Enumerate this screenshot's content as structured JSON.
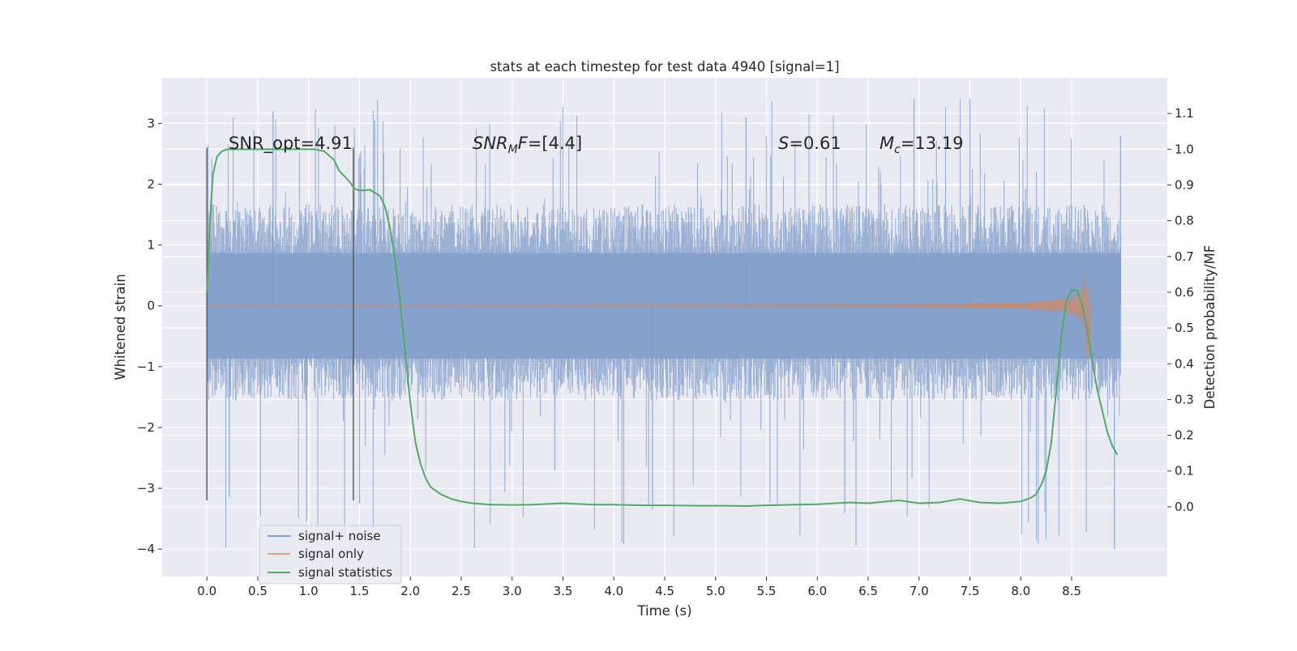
{
  "chart_data": {
    "type": "line",
    "title": "stats at each timestep for test data 4940 [signal=1]",
    "xlabel": "Time (s)",
    "ylabel": "Whitened strain",
    "ylabel_right": "Detection probability/MF",
    "xlim": [
      -0.44,
      9.44
    ],
    "ylim_left": [
      -4.45,
      3.75
    ],
    "ylim_right": [
      -0.195,
      1.2
    ],
    "x_ticks": [
      0.0,
      0.5,
      1.0,
      1.5,
      2.0,
      2.5,
      3.0,
      3.5,
      4.0,
      4.5,
      5.0,
      5.5,
      6.0,
      6.5,
      7.0,
      7.5,
      8.0,
      8.5
    ],
    "x_tick_labels": [
      "0.0",
      "0.5",
      "1.0",
      "1.5",
      "2.0",
      "2.5",
      "3.0",
      "3.5",
      "4.0",
      "4.5",
      "5.0",
      "5.5",
      "6.0",
      "6.5",
      "7.0",
      "7.5",
      "8.0",
      "8.5"
    ],
    "y_ticks_left": [
      3,
      2,
      1,
      0,
      -1,
      -2,
      -3,
      -4
    ],
    "y_tick_labels_left": [
      "3",
      "2",
      "1",
      "0",
      "−1",
      "−2",
      "−3",
      "−4"
    ],
    "y_ticks_right": [
      1.1,
      1.0,
      0.9,
      0.8,
      0.7,
      0.6,
      0.5,
      0.4,
      0.3,
      0.2,
      0.1,
      0.0
    ],
    "y_tick_labels_right": [
      "1.1",
      "1.0",
      "0.9",
      "0.8",
      "0.7",
      "0.6",
      "0.5",
      "0.4",
      "0.3",
      "0.2",
      "0.1",
      "0.0"
    ],
    "grid": true,
    "legend_position": "lower-left",
    "background_color": "#eaeaf2",
    "series": [
      {
        "name": "signal+ noise",
        "color": "#7f9cca",
        "axis": "left",
        "x_range": [
          0.0,
          8.98
        ],
        "amplitude_band": [
          -1.25,
          1.45
        ],
        "peaks_max": 3.4,
        "peaks_min": -4.0
      },
      {
        "name": "signal only",
        "color": "#dd8452",
        "axis": "left",
        "x_range": [
          0.0,
          8.98
        ],
        "chirp_peak_time": 8.67,
        "chirp_peak_amplitude": 0.85
      },
      {
        "name": "signal statistics",
        "color": "#55a868",
        "axis": "right",
        "x": [
          0.0,
          0.03,
          0.06,
          0.1,
          0.15,
          0.2,
          0.3,
          0.5,
          0.7,
          0.9,
          1.05,
          1.15,
          1.25,
          1.3,
          1.4,
          1.45,
          1.5,
          1.55,
          1.6,
          1.7,
          1.75,
          1.8,
          1.85,
          1.9,
          1.95,
          2.0,
          2.05,
          2.1,
          2.15,
          2.2,
          2.3,
          2.4,
          2.5,
          2.6,
          2.8,
          3.0,
          3.2,
          3.5,
          3.8,
          4.0,
          4.3,
          4.5,
          4.8,
          5.0,
          5.3,
          5.5,
          5.8,
          6.0,
          6.3,
          6.5,
          6.8,
          7.0,
          7.2,
          7.4,
          7.6,
          7.8,
          8.0,
          8.1,
          8.15,
          8.2,
          8.25,
          8.3,
          8.35,
          8.4,
          8.45,
          8.5,
          8.55,
          8.6,
          8.65,
          8.7,
          8.75,
          8.8,
          8.85,
          8.9,
          8.95
        ],
        "y": [
          0.6,
          0.8,
          0.93,
          0.98,
          0.995,
          1.0,
          1.0,
          1.0,
          1.0,
          1.0,
          1.0,
          0.995,
          0.97,
          0.94,
          0.91,
          0.89,
          0.885,
          0.885,
          0.887,
          0.87,
          0.84,
          0.78,
          0.69,
          0.57,
          0.43,
          0.29,
          0.18,
          0.12,
          0.08,
          0.055,
          0.035,
          0.022,
          0.015,
          0.01,
          0.006,
          0.005,
          0.006,
          0.01,
          0.006,
          0.006,
          0.004,
          0.004,
          0.003,
          0.003,
          0.002,
          0.004,
          0.006,
          0.007,
          0.012,
          0.01,
          0.018,
          0.01,
          0.012,
          0.022,
          0.012,
          0.01,
          0.015,
          0.025,
          0.035,
          0.06,
          0.1,
          0.18,
          0.33,
          0.48,
          0.58,
          0.605,
          0.605,
          0.57,
          0.5,
          0.41,
          0.33,
          0.27,
          0.21,
          0.17,
          0.145
        ]
      }
    ],
    "vertical_lines": [
      0.0,
      1.44
    ],
    "annotations": [
      {
        "x": 0.2,
        "text": "SNR_opt=4.91"
      },
      {
        "x": 2.6,
        "text": "SNR_MF=[4.4]"
      },
      {
        "x": 5.6,
        "text": "S=0.61"
      },
      {
        "x": 6.6,
        "text": "M_c=13.19"
      }
    ],
    "legend": [
      "signal+ noise",
      "signal only",
      "signal statistics"
    ]
  }
}
